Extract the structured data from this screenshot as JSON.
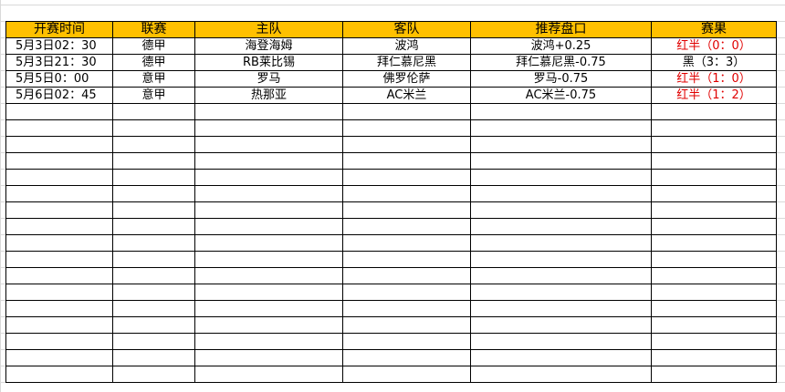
{
  "table": {
    "header": [
      "开赛时间",
      "联赛",
      "主队",
      "客队",
      "推荐盘口",
      "赛果"
    ],
    "rows": [
      [
        "5月3日02：30",
        "德甲",
        "海登海姆",
        "波鸿",
        "波鸿+0.25",
        "红半（0：0）"
      ],
      [
        "5月3日21：30",
        "德甲",
        "RB莱比锡",
        "拜仁慕尼黑",
        "拜仁慕尼黑-0.75",
        "黑（3：3）"
      ],
      [
        "5月5日0：00",
        "意甲",
        "罗马",
        "佛罗伦萨",
        "罗马-0.75",
        "红半（1：0）"
      ],
      [
        "5月6日02：45",
        "意甲",
        "热那亚",
        "AC米兰",
        "AC米兰-0.75",
        "红半（1：2）"
      ]
    ]
  }
}
